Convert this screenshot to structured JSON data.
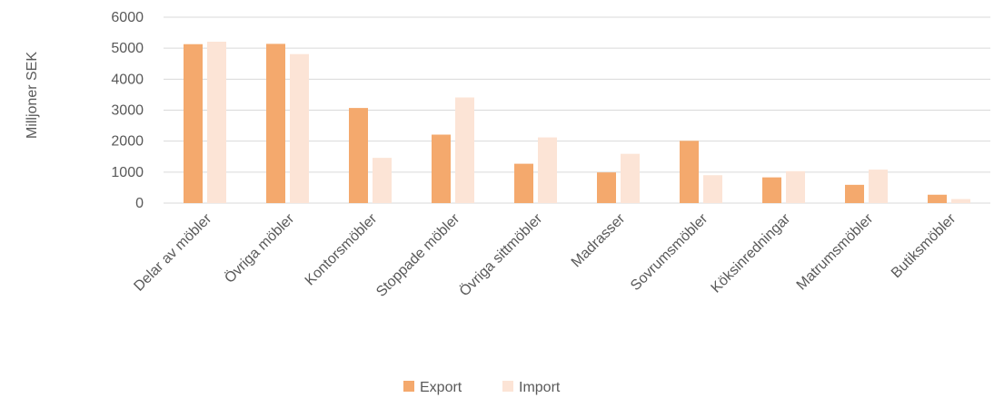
{
  "chart_data": {
    "type": "bar",
    "categories": [
      "Delar av möbler",
      "Övriga möbler",
      "Kontorsmöbler",
      "Stoppade möbler",
      "Övriga sittmöbler",
      "Madrasser",
      "Sovrumsmöbler",
      "Köksinredningar",
      "Matrumsmöbler",
      "Butiksmöbler"
    ],
    "series": [
      {
        "name": "Export",
        "color": "#F4A96D",
        "values": [
          5130,
          5140,
          3070,
          2210,
          1270,
          990,
          2010,
          830,
          590,
          270
        ]
      },
      {
        "name": "Import",
        "color": "#FCE4D6",
        "values": [
          5210,
          4810,
          1460,
          3410,
          2120,
          1590,
          900,
          1030,
          1080,
          130
        ]
      }
    ],
    "title": "",
    "xlabel": "",
    "ylabel": "Milljoner  SEK",
    "ylim": [
      0,
      6000
    ],
    "yticks": [
      "0",
      "1000",
      "2000",
      "3000",
      "4000",
      "5000",
      "6000"
    ],
    "grid": true,
    "legend_position": "bottom"
  }
}
